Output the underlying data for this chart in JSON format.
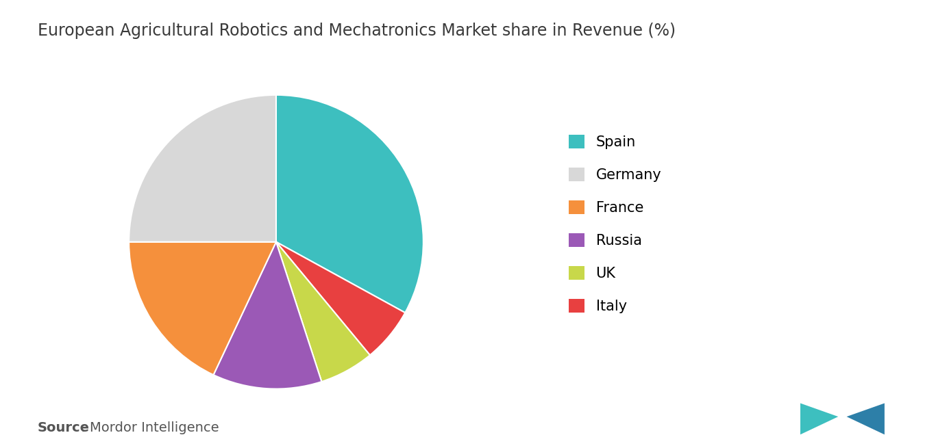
{
  "title": "European Agricultural Robotics and Mechatronics Market share in Revenue (%)",
  "labels": [
    "Spain",
    "Germany",
    "France",
    "Russia",
    "UK",
    "Italy"
  ],
  "values": [
    33,
    25,
    18,
    12,
    6,
    6
  ],
  "colors": [
    "#3dbfbf",
    "#d8d8d8",
    "#f5903c",
    "#9b59b6",
    "#c8d84a",
    "#e84040"
  ],
  "source_bold": "Source",
  "source_rest": " : Mordor Intelligence",
  "background_color": "#ffffff",
  "title_fontsize": 17,
  "legend_fontsize": 15,
  "source_fontsize": 14,
  "logo_color_teal": "#3dbfbf",
  "logo_color_blue": "#2d7fa8"
}
